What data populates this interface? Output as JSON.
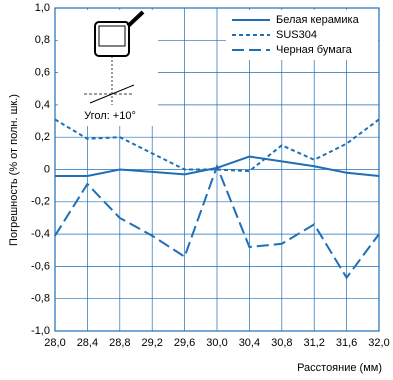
{
  "chart_data": {
    "type": "line",
    "y_label": "Погрешность (% от полн. шк.)",
    "x_label": "Расстояние (мм)",
    "annotation": "Угол: +10°",
    "x": [
      28.0,
      28.4,
      28.8,
      29.2,
      29.6,
      30.0,
      30.4,
      30.8,
      31.2,
      31.6,
      32.0
    ],
    "xlim": [
      28.0,
      32.0
    ],
    "xticks": [
      {
        "value": 28.0,
        "label": "28,0"
      },
      {
        "value": 28.4,
        "label": "28,4"
      },
      {
        "value": 28.8,
        "label": "28,8"
      },
      {
        "value": 29.2,
        "label": "29,2"
      },
      {
        "value": 29.6,
        "label": "29,6"
      },
      {
        "value": 30.0,
        "label": "30,0"
      },
      {
        "value": 30.4,
        "label": "30,4"
      },
      {
        "value": 30.8,
        "label": "30,8"
      },
      {
        "value": 31.2,
        "label": "31,2"
      },
      {
        "value": 31.6,
        "label": "31,6"
      },
      {
        "value": 32.0,
        "label": "32,0"
      }
    ],
    "ylim": [
      -1.0,
      1.0
    ],
    "yticks": [
      {
        "value": 1.0,
        "label": "1,0"
      },
      {
        "value": 0.8,
        "label": "0,8"
      },
      {
        "value": 0.6,
        "label": "0,6"
      },
      {
        "value": 0.4,
        "label": "0,4"
      },
      {
        "value": 0.2,
        "label": "0,2"
      },
      0,
      {
        "value": -0.2,
        "label": "-0,2"
      },
      {
        "value": -0.4,
        "label": "-0,4"
      },
      {
        "value": -0.6,
        "label": "-0,6"
      },
      {
        "value": -0.8,
        "label": "-0,8"
      },
      {
        "value": -1.0,
        "label": "-1,0"
      }
    ],
    "grid": true,
    "legend": "top-right",
    "series": [
      {
        "name": "Белая керамика",
        "color": "#1f6fb7",
        "dash": "solid",
        "values": [
          -0.04,
          -0.04,
          0.0,
          -0.015,
          -0.03,
          0.01,
          0.08,
          0.05,
          0.02,
          -0.02,
          -0.04
        ]
      },
      {
        "name": "SUS304",
        "color": "#1f6fb7",
        "dash": "short",
        "values": [
          0.31,
          0.19,
          0.2,
          0.1,
          0.0,
          0.0,
          -0.01,
          0.15,
          0.06,
          0.16,
          0.31
        ]
      },
      {
        "name": "Черная бумага",
        "color": "#1f6fb7",
        "dash": "long",
        "values": [
          -0.41,
          -0.09,
          -0.3,
          -0.41,
          -0.54,
          0.02,
          -0.48,
          -0.46,
          -0.34,
          -0.67,
          -0.4
        ]
      }
    ]
  }
}
